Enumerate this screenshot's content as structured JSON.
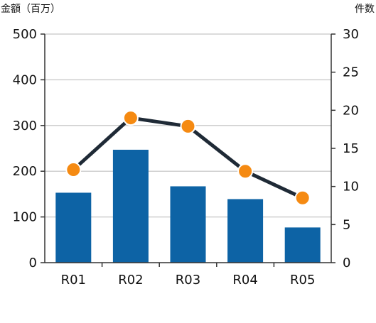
{
  "chart_data": {
    "type": "bar",
    "categories": [
      "R01",
      "R02",
      "R03",
      "R04",
      "R05"
    ],
    "series": [
      {
        "type": "bar",
        "axis": "left",
        "values": [
          153,
          247,
          167,
          139,
          77
        ]
      },
      {
        "type": "line",
        "axis": "right",
        "values": [
          12.2,
          19.0,
          17.9,
          12.0,
          8.5
        ]
      }
    ],
    "left_axis": {
      "label": "金額（百万）",
      "ylim": [
        0,
        500
      ],
      "ticks": [
        "0",
        "100",
        "200",
        "300",
        "400",
        "500"
      ]
    },
    "right_axis": {
      "label": "件数",
      "ylim": [
        0,
        30
      ],
      "ticks": [
        "0",
        "5",
        "10",
        "15",
        "20",
        "25",
        "30"
      ]
    },
    "grid": true,
    "colors": {
      "bar": "#0d63a5",
      "line": "#1f2a36",
      "marker": "#f58a12",
      "marker_stroke": "#ffffff",
      "grid": "#cfcfcf",
      "axis": "#333333"
    }
  }
}
